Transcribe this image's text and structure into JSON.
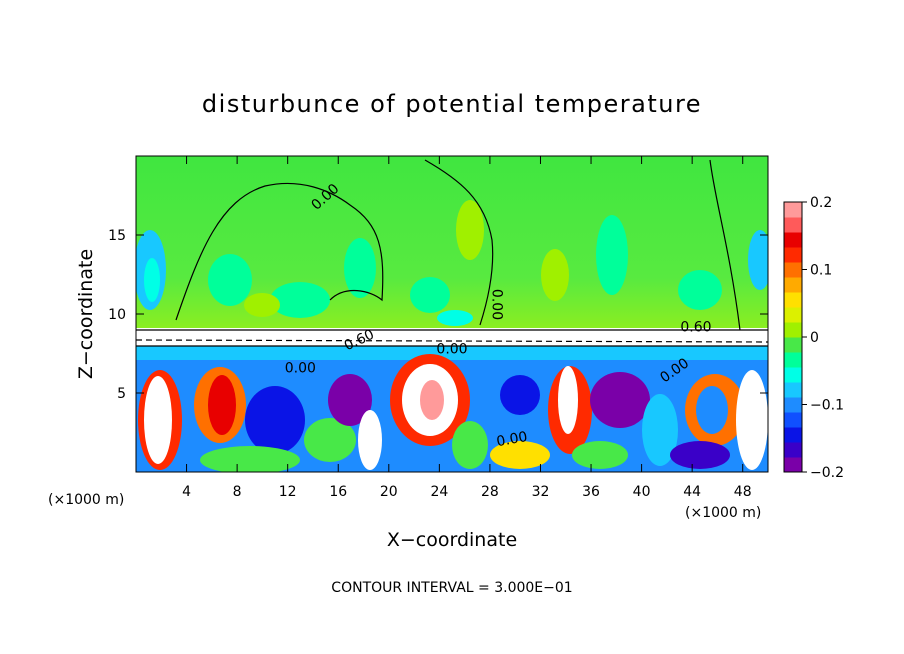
{
  "chart_data": {
    "type": "heatmap",
    "title": "disturbunce of potential temperature",
    "xlabel": "X−coordinate",
    "ylabel": "Z−coordinate",
    "x_unit_left": "(×1000 m)",
    "x_unit_right": "(×1000 m)",
    "xlim": [
      0,
      50
    ],
    "ylim": [
      0,
      20
    ],
    "x_ticks": [
      4,
      8,
      12,
      16,
      20,
      24,
      28,
      32,
      36,
      40,
      44,
      48
    ],
    "y_ticks": [
      5,
      10,
      15
    ],
    "colorbar": {
      "range": [
        -0.2,
        0.2
      ],
      "tick_values": [
        0.2,
        0.1,
        0,
        -0.1,
        -0.2
      ],
      "tick_labels": [
        "0.2",
        "0.1",
        "0",
        "−0.1",
        "−0.2"
      ],
      "colors": [
        "#7a00a8",
        "#3a00c8",
        "#0a14e6",
        "#1050ff",
        "#1e8cff",
        "#18c8ff",
        "#00ffe6",
        "#00ff9a",
        "#48e848",
        "#a0f000",
        "#dcf000",
        "#ffe000",
        "#ffaa00",
        "#ff7000",
        "#ff2a00",
        "#e80000",
        "#ff5a5a",
        "#ff9a9a"
      ]
    },
    "contour_labels": [
      {
        "text": "0.00",
        "x": 15.2,
        "y": 17.2,
        "rotate": -42
      },
      {
        "text": "0.00",
        "x": 28.2,
        "y": 10.6,
        "rotate": 90
      },
      {
        "text": "0.60",
        "x": 44.3,
        "y": 8.9,
        "rotate": 0
      },
      {
        "text": "0.60",
        "x": 17.8,
        "y": 8.1,
        "rotate": -25
      },
      {
        "text": "0.00",
        "x": 25.0,
        "y": 7.5,
        "rotate": 0
      },
      {
        "text": "0.00",
        "x": 13.0,
        "y": 6.3,
        "rotate": 0
      },
      {
        "text": "0.00",
        "x": 42.8,
        "y": 6.2,
        "rotate": -35
      },
      {
        "text": "0.00",
        "x": 29.8,
        "y": 1.8,
        "rotate": -10
      }
    ],
    "contour_interval_text": "CONTOUR INTERVAL = 3.000E−01",
    "colors": {
      "background_upper": "#48e848",
      "plume_edge": "#ffffff"
    }
  }
}
